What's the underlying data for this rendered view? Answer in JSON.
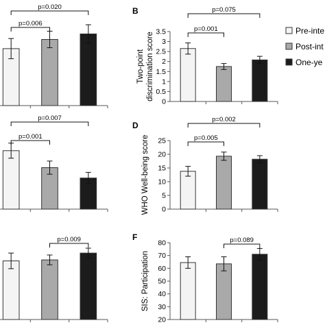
{
  "colors": {
    "pre": "#f4f4f4",
    "post": "#a9a9a9",
    "one_year": "#1c1c1c",
    "stroke": "#333333"
  },
  "legend": {
    "items": [
      {
        "label": "Pre-inte",
        "color": "#f4f4f4"
      },
      {
        "label": "Post-int",
        "color": "#a9a9a9"
      },
      {
        "label": "One-ye",
        "color": "#1c1c1c"
      }
    ]
  },
  "chart_data": [
    {
      "panel": "A",
      "type": "bar",
      "letter": "",
      "ylabel": "",
      "series": [
        {
          "values": [
            62,
            72,
            78
          ],
          "errors": [
            11,
            9,
            10
          ],
          "colors": [
            "#f4f4f4",
            "#a9a9a9",
            "#1c1c1c"
          ]
        }
      ],
      "annotations": [
        {
          "text": "p=0.020",
          "from": 0,
          "to": 2,
          "level": 2
        },
        {
          "text": "p=0.006",
          "from": 0,
          "to": 1,
          "level": 1
        }
      ]
    },
    {
      "panel": "B",
      "type": "bar",
      "letter": "B",
      "ylabel": "Two-point discrimination score",
      "ylim": [
        0,
        3.5
      ],
      "yticks": [
        "0",
        "0.5",
        "1",
        "1.5",
        "2",
        "2.5",
        "3",
        "3.5"
      ],
      "series": [
        {
          "values": [
            2.65,
            1.75,
            2.08
          ],
          "errors": [
            0.28,
            0.15,
            0.18
          ],
          "colors": [
            "#f4f4f4",
            "#a9a9a9",
            "#1c1c1c"
          ]
        }
      ],
      "annotations": [
        {
          "text": "p=0.075",
          "from": 0,
          "to": 2,
          "level": 2
        },
        {
          "text": "p=0.001",
          "from": 0,
          "to": 1,
          "level": 1
        }
      ]
    },
    {
      "panel": "C",
      "type": "bar",
      "letter": "",
      "ylabel": "",
      "series": [
        {
          "values": [
            62,
            44,
            33
          ],
          "errors": [
            8,
            7,
            6
          ],
          "colors": [
            "#f4f4f4",
            "#a9a9a9",
            "#1c1c1c"
          ]
        }
      ],
      "annotations": [
        {
          "text": "p=0.007",
          "from": 0,
          "to": 2,
          "level": 2
        },
        {
          "text": "p=0.001",
          "from": 0,
          "to": 1,
          "level": 1
        }
      ]
    },
    {
      "panel": "D",
      "type": "bar",
      "letter": "D",
      "ylabel": "WHO Well-being score",
      "ylim": [
        0,
        25
      ],
      "yticks": [
        "0",
        "5",
        "10",
        "15",
        "20",
        "25"
      ],
      "series": [
        {
          "values": [
            13.8,
            19.3,
            18.2
          ],
          "errors": [
            1.8,
            1.5,
            1.3
          ],
          "colors": [
            "#f4f4f4",
            "#a9a9a9",
            "#1c1c1c"
          ]
        }
      ],
      "annotations": [
        {
          "text": "p=0.002",
          "from": 0,
          "to": 2,
          "level": 2
        },
        {
          "text": "p=0.005",
          "from": 0,
          "to": 1,
          "level": 1
        }
      ]
    },
    {
      "panel": "E",
      "type": "bar",
      "letter": "",
      "ylabel": "",
      "series": [
        {
          "values": [
            60,
            61,
            68
          ],
          "errors": [
            8,
            5,
            5
          ],
          "colors": [
            "#f4f4f4",
            "#a9a9a9",
            "#1c1c1c"
          ]
        }
      ],
      "annotations": [
        {
          "text": "p=0.009",
          "from": 1,
          "to": 2,
          "level": 1
        }
      ]
    },
    {
      "panel": "F",
      "type": "bar",
      "letter": "F",
      "ylabel": "SIS: Participation",
      "ylim": [
        20,
        80
      ],
      "yticks": [
        "20",
        "30",
        "40",
        "50",
        "60",
        "70",
        "80"
      ],
      "series": [
        {
          "values": [
            64.5,
            63.5,
            71
          ],
          "errors": [
            4.5,
            5.5,
            4.5
          ],
          "colors": [
            "#f4f4f4",
            "#a9a9a9",
            "#1c1c1c"
          ]
        }
      ],
      "annotations": [
        {
          "text": "p=0.089",
          "from": 1,
          "to": 2,
          "level": 1
        }
      ]
    }
  ]
}
